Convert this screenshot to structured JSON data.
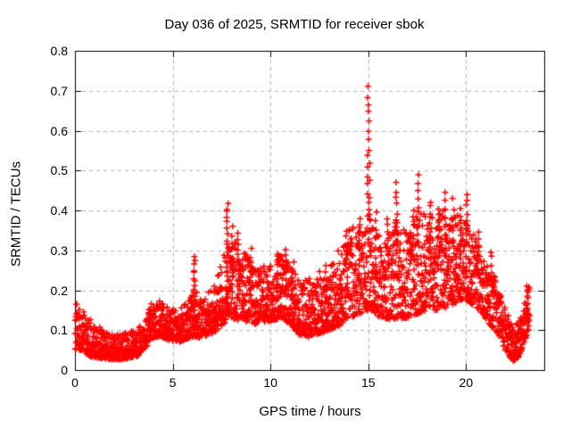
{
  "chart_data": {
    "type": "scatter",
    "title": "Day 036 of 2025, SRMTID for receiver sbok",
    "xlabel": "GPS time / hours",
    "ylabel": "SRMTID / TECUs",
    "series_name": "SRMTID",
    "xlim": [
      0,
      24
    ],
    "ylim": [
      0,
      0.8
    ],
    "xtick_values": [
      0,
      5,
      10,
      15,
      20
    ],
    "xtick_labels": [
      "0",
      "5",
      "10",
      "15",
      "20"
    ],
    "ytick_values": [
      0,
      0.1,
      0.2,
      0.3,
      0.4,
      0.5,
      0.6,
      0.7,
      0.8
    ],
    "ytick_labels": [
      "0",
      "0.1",
      "0.2",
      "0.3",
      "0.4",
      "0.5",
      "0.6",
      "0.7",
      "0.8"
    ],
    "grid": true,
    "legend": "none",
    "marker": "plus",
    "marker_color": "#ff0000",
    "grid_color": "#b4b4b4",
    "axis_color": "#000000",
    "background_color": "#ffffff",
    "sampling": {
      "start_hour": 0,
      "end_hour": 23.25,
      "cadence_hours": 0.008333,
      "seed": 20250036,
      "uniform_mix": 0.18,
      "low_bias_power": 1.7,
      "x_jitter": 0.004
    },
    "envelope": [
      [
        0.0,
        0.05,
        0.17
      ],
      [
        0.3,
        0.05,
        0.155
      ],
      [
        0.7,
        0.035,
        0.13
      ],
      [
        1.2,
        0.03,
        0.11
      ],
      [
        1.7,
        0.028,
        0.095
      ],
      [
        2.2,
        0.025,
        0.09
      ],
      [
        2.7,
        0.03,
        0.095
      ],
      [
        3.2,
        0.035,
        0.105
      ],
      [
        3.6,
        0.055,
        0.135
      ],
      [
        3.95,
        0.08,
        0.17
      ],
      [
        4.35,
        0.085,
        0.175
      ],
      [
        4.8,
        0.075,
        0.16
      ],
      [
        5.3,
        0.07,
        0.15
      ],
      [
        5.8,
        0.08,
        0.175
      ],
      [
        6.1,
        0.085,
        0.21
      ],
      [
        6.45,
        0.08,
        0.175
      ],
      [
        6.9,
        0.09,
        0.2
      ],
      [
        7.3,
        0.1,
        0.24
      ],
      [
        7.7,
        0.12,
        0.3
      ],
      [
        8.0,
        0.13,
        0.33
      ],
      [
        8.4,
        0.125,
        0.31
      ],
      [
        8.8,
        0.12,
        0.29
      ],
      [
        9.3,
        0.115,
        0.255
      ],
      [
        9.7,
        0.12,
        0.26
      ],
      [
        10.1,
        0.125,
        0.28
      ],
      [
        10.6,
        0.13,
        0.29
      ],
      [
        11.1,
        0.11,
        0.26
      ],
      [
        11.5,
        0.085,
        0.22
      ],
      [
        12.0,
        0.08,
        0.23
      ],
      [
        12.5,
        0.09,
        0.25
      ],
      [
        13.0,
        0.1,
        0.27
      ],
      [
        13.5,
        0.11,
        0.31
      ],
      [
        14.0,
        0.13,
        0.35
      ],
      [
        14.5,
        0.14,
        0.375
      ],
      [
        15.0,
        0.15,
        0.39
      ],
      [
        15.5,
        0.135,
        0.34
      ],
      [
        16.0,
        0.125,
        0.35
      ],
      [
        16.5,
        0.13,
        0.38
      ],
      [
        17.0,
        0.13,
        0.34
      ],
      [
        17.5,
        0.14,
        0.39
      ],
      [
        18.0,
        0.15,
        0.4
      ],
      [
        18.5,
        0.15,
        0.385
      ],
      [
        19.0,
        0.155,
        0.41
      ],
      [
        19.5,
        0.17,
        0.4
      ],
      [
        19.9,
        0.18,
        0.375
      ],
      [
        20.3,
        0.165,
        0.35
      ],
      [
        20.7,
        0.15,
        0.32
      ],
      [
        21.1,
        0.12,
        0.27
      ],
      [
        21.6,
        0.095,
        0.22
      ],
      [
        22.0,
        0.05,
        0.16
      ],
      [
        22.4,
        0.022,
        0.105
      ],
      [
        22.75,
        0.035,
        0.125
      ],
      [
        23.05,
        0.08,
        0.19
      ],
      [
        23.25,
        0.1,
        0.215
      ]
    ],
    "spikes": [
      [
        6.1,
        0.16,
        0.285,
        13
      ],
      [
        7.8,
        0.22,
        0.42,
        16
      ],
      [
        8.05,
        0.2,
        0.355,
        9
      ],
      [
        8.35,
        0.22,
        0.345,
        9
      ],
      [
        9.0,
        0.22,
        0.3,
        7
      ],
      [
        10.35,
        0.2,
        0.295,
        9
      ],
      [
        10.8,
        0.2,
        0.305,
        8
      ],
      [
        11.15,
        0.18,
        0.27,
        7
      ],
      [
        12.85,
        0.17,
        0.26,
        7
      ],
      [
        13.9,
        0.2,
        0.35,
        9
      ],
      [
        14.55,
        0.22,
        0.385,
        9
      ],
      [
        15.0,
        0.4,
        0.71,
        15
      ],
      [
        15.1,
        0.3,
        0.52,
        6
      ],
      [
        15.4,
        0.24,
        0.4,
        8
      ],
      [
        16.0,
        0.25,
        0.38,
        8
      ],
      [
        16.45,
        0.3,
        0.47,
        10
      ],
      [
        17.3,
        0.25,
        0.4,
        8
      ],
      [
        17.55,
        0.32,
        0.485,
        10
      ],
      [
        18.15,
        0.28,
        0.425,
        9
      ],
      [
        18.6,
        0.26,
        0.4,
        7
      ],
      [
        18.95,
        0.3,
        0.45,
        8
      ],
      [
        19.35,
        0.28,
        0.43,
        7
      ],
      [
        19.7,
        0.26,
        0.405,
        9
      ],
      [
        20.05,
        0.32,
        0.445,
        8
      ],
      [
        20.6,
        0.24,
        0.345,
        7
      ],
      [
        21.3,
        0.2,
        0.3,
        6
      ],
      [
        23.15,
        0.12,
        0.215,
        7
      ]
    ]
  }
}
